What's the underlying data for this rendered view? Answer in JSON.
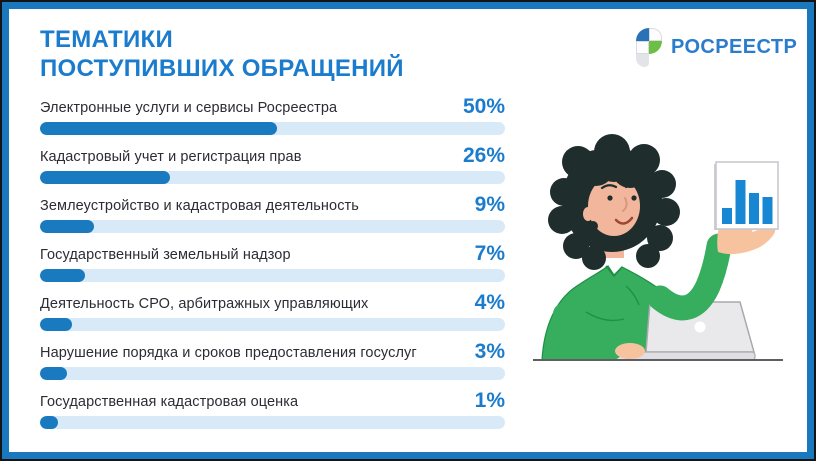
{
  "title": {
    "line1": "ТЕМАТИКИ",
    "line2": "ПОСТУПИВШИХ ОБРАЩЕНИЙ"
  },
  "logo": {
    "name": "РОСРЕЕСТР"
  },
  "chart_data": {
    "type": "bar",
    "orientation": "horizontal",
    "title": "ТЕМАТИКИ ПОСТУПИВШИХ ОБРАЩЕНИЙ",
    "unit": "percent",
    "xlim": [
      0,
      100
    ],
    "grid": false,
    "legend": false,
    "categories": [
      "Электронные услуги и сервисы Росреестра",
      "Кадастровый учет и регистрация прав",
      "Землеустройство и кадастровая деятельность",
      "Государственный земельный надзор",
      "Деятельность СРО, арбитражных управляющих",
      "Нарушение порядка и сроков предоставления госуслуг",
      "Государственная кадастровая оценка"
    ],
    "values": [
      50,
      26,
      9,
      7,
      4,
      3,
      1
    ],
    "value_labels": [
      "50%",
      "26%",
      "9%",
      "7%",
      "4%",
      "3%",
      "1%"
    ],
    "bar_color": "#197ABF",
    "track_color": "#D8E9F8",
    "value_label_color": "#1B7CCD"
  },
  "illustration": {
    "alt": "Женщина в зеленой рубашке за ноутбуком показывает на диаграмму",
    "mini_chart": {
      "type": "bar",
      "bar_color": "#1787D3",
      "relative_heights": [
        16,
        44,
        31,
        27
      ]
    }
  },
  "colors": {
    "frame_border": "#1A78BE",
    "outer_border": "#141414",
    "title": "#1B7CCD",
    "label_text": "#2C2C34",
    "logo_blue": "#2A72B8",
    "logo_green": "#6DBE45",
    "logo_gray": "#E2E4E8",
    "logo_text": "#2B7CCD",
    "shirt_green": "#36AE5E",
    "hair": "#1F2D2D",
    "skin": "#F2B69C",
    "laptop_gray": "#E9E9EC"
  }
}
